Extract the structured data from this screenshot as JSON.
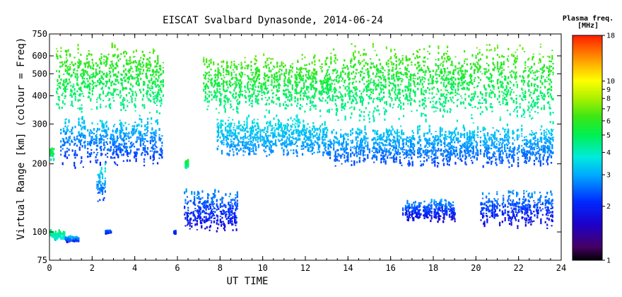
{
  "chart_data": {
    "type": "scatter",
    "title": "EISCAT Svalbard Dynasonde, 2014-06-24",
    "xlabel": "UT TIME",
    "ylabel": "Virtual Range [km] (colour = Freq)",
    "xlim": [
      0,
      24
    ],
    "ylim": [
      75,
      750
    ],
    "y_scale": "log",
    "x_ticks": [
      0,
      2,
      4,
      6,
      8,
      10,
      12,
      14,
      16,
      18,
      20,
      22,
      24
    ],
    "y_ticks": [
      75,
      100,
      200,
      300,
      400,
      500,
      600,
      750
    ],
    "grid": false,
    "colorbar": {
      "title_line1": "Plasma freq.",
      "title_line2": "[MHz]",
      "scale": "log",
      "range": [
        1,
        18
      ],
      "ticks": [
        1,
        2,
        3,
        4,
        5,
        6,
        7,
        8,
        9,
        10,
        18
      ]
    },
    "series": [
      {
        "x_range": [
          0.3,
          5.3
        ],
        "y_range": [
          330,
          690
        ],
        "freq_range": [
          4.2,
          7.0
        ]
      },
      {
        "x_range": [
          0.5,
          5.3
        ],
        "y_range": [
          190,
          330
        ],
        "freq_range": [
          2.0,
          3.6
        ]
      },
      {
        "x_range": [
          7.2,
          13.0
        ],
        "y_range": [
          330,
          620
        ],
        "freq_range": [
          4.2,
          7.0
        ]
      },
      {
        "x_range": [
          7.8,
          13.0
        ],
        "y_range": [
          210,
          330
        ],
        "freq_range": [
          2.6,
          3.8
        ]
      },
      {
        "x_range": [
          13.0,
          23.6
        ],
        "y_range": [
          300,
          690
        ],
        "freq_range": [
          4.0,
          7.0
        ]
      },
      {
        "x_range": [
          13.0,
          23.6
        ],
        "y_range": [
          190,
          300
        ],
        "freq_range": [
          2.2,
          3.6
        ]
      },
      {
        "x_range": [
          2.2,
          2.6
        ],
        "y_range": [
          130,
          200
        ],
        "freq_range": [
          2.0,
          4.0
        ]
      },
      {
        "x_range": [
          0.0,
          0.7
        ],
        "y_range": [
          92,
          102
        ],
        "freq_range": [
          3.5,
          5.0
        ]
      },
      {
        "x_range": [
          0.7,
          1.4
        ],
        "y_range": [
          90,
          96
        ],
        "freq_range": [
          1.8,
          3.5
        ]
      },
      {
        "x_range": [
          2.6,
          2.9
        ],
        "y_range": [
          98,
          102
        ],
        "freq_range": [
          1.8,
          2.8
        ]
      },
      {
        "x_range": [
          5.8,
          5.9
        ],
        "y_range": [
          97,
          103
        ],
        "freq_range": [
          1.8,
          2.5
        ]
      },
      {
        "x_range": [
          6.3,
          8.8
        ],
        "y_range": [
          98,
          160
        ],
        "freq_range": [
          1.6,
          3.0
        ]
      },
      {
        "x_range": [
          16.5,
          19.0
        ],
        "y_range": [
          110,
          140
        ],
        "freq_range": [
          1.6,
          3.0
        ]
      },
      {
        "x_range": [
          20.2,
          23.6
        ],
        "y_range": [
          102,
          155
        ],
        "freq_range": [
          1.6,
          3.0
        ]
      },
      {
        "x_range": [
          0.0,
          0.2
        ],
        "y_range": [
          205,
          240
        ],
        "freq_range": [
          4.0,
          6.0
        ]
      },
      {
        "x_range": [
          6.3,
          6.5
        ],
        "y_range": [
          190,
          210
        ],
        "freq_range": [
          4.0,
          6.0
        ]
      }
    ]
  }
}
